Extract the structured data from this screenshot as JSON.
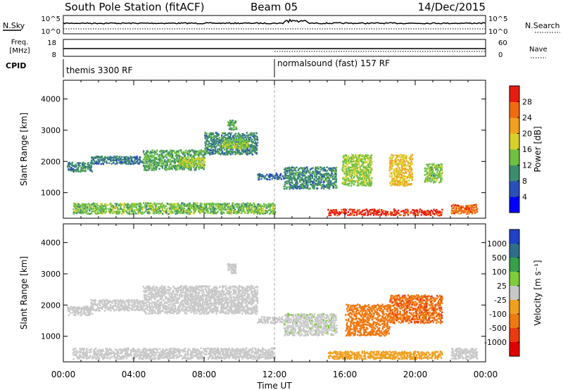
{
  "header": {
    "station": "South Pole Station (fitACF)",
    "beam": "Beam 05",
    "date": "14/Dec/2015"
  },
  "summary": {
    "nsky_label": "N.Sky",
    "nsearch_label": "N.Search",
    "count_ticks": [
      "10^5",
      "10^0"
    ],
    "freq_label_1": "Freq.",
    "freq_label_2": "[MHz]",
    "freq_ticks": [
      "18",
      "8"
    ],
    "nave_label": "Nave",
    "nave_ticks": [
      "60",
      "0"
    ],
    "cpid_label": "CPID",
    "cpid_segments": [
      {
        "name": "themis 3300 RF",
        "start_hour": 0
      },
      {
        "name": "normalsound (fast) 157 RF",
        "start_hour": 12
      }
    ]
  },
  "axes": {
    "x_ticks": [
      "00:00",
      "04:00",
      "08:00",
      "12:00",
      "16:00",
      "20:00",
      "00:00"
    ],
    "x_label": "Time UT",
    "x_range_hours": [
      0,
      24
    ],
    "y_ticks": [
      "1000",
      "2000",
      "3000",
      "4000"
    ],
    "y_label": "Slant Range [km]",
    "y_range_km": [
      180,
      4600
    ]
  },
  "colors": {
    "power_scale": [
      "#0000ff",
      "#2b4fb8",
      "#3e8c6e",
      "#6fc043",
      "#d8d02a",
      "#f2a020",
      "#f26a10",
      "#e61c10"
    ],
    "velocity_scale": [
      "#2042c8",
      "#2e6e8c",
      "#36a04a",
      "#7ccc3c",
      "#c8c8c8",
      "#f0a020",
      "#f07810",
      "#e83c10",
      "#e00000"
    ]
  },
  "chart_data": [
    {
      "type": "heatmap",
      "panel": "power",
      "colorbar_label": "Power [dB]",
      "colorbar_ticks": [
        "4",
        "8",
        "12",
        "16",
        "20",
        "24",
        "28"
      ],
      "colorbar_range": [
        0,
        32
      ],
      "grid": false,
      "echo_regions": [
        {
          "t": [
            0.2,
            1.6
          ],
          "r": [
            1650,
            1950
          ],
          "level": 10
        },
        {
          "t": [
            1.5,
            4.5
          ],
          "r": [
            1900,
            2150
          ],
          "level": 9
        },
        {
          "t": [
            4.5,
            8.0
          ],
          "r": [
            1700,
            2350
          ],
          "level": 12
        },
        {
          "t": [
            6.5,
            8.0
          ],
          "r": [
            1800,
            2100
          ],
          "level": 17
        },
        {
          "t": [
            8.0,
            11.0
          ],
          "r": [
            2200,
            2900
          ],
          "level": 10
        },
        {
          "t": [
            9.0,
            10.5
          ],
          "r": [
            2400,
            2700
          ],
          "level": 15
        },
        {
          "t": [
            9.3,
            9.8
          ],
          "r": [
            3000,
            3300
          ],
          "level": 12
        },
        {
          "t": [
            11.0,
            12.5
          ],
          "r": [
            1400,
            1600
          ],
          "level": 8
        },
        {
          "t": [
            12.5,
            15.5
          ],
          "r": [
            1100,
            1800
          ],
          "level": 10
        },
        {
          "t": [
            15.8,
            17.5
          ],
          "r": [
            1200,
            2200
          ],
          "level": 15
        },
        {
          "t": [
            18.5,
            19.8
          ],
          "r": [
            1200,
            2200
          ],
          "level": 20
        },
        {
          "t": [
            20.5,
            21.5
          ],
          "r": [
            1300,
            1900
          ],
          "level": 14
        },
        {
          "t": [
            0.5,
            12.0
          ],
          "r": [
            300,
            650
          ],
          "level": 14
        },
        {
          "t": [
            15.0,
            21.5
          ],
          "r": [
            250,
            450
          ],
          "level": 30
        },
        {
          "t": [
            22.0,
            23.5
          ],
          "r": [
            300,
            600
          ],
          "level": 26
        }
      ]
    },
    {
      "type": "heatmap",
      "panel": "velocity",
      "colorbar_label": "Velocity [m s⁻¹]",
      "colorbar_ticks": [
        "1000",
        "500",
        "100",
        "25",
        "-25",
        "-100",
        "-500",
        "-1000"
      ],
      "colorbar_range": [
        -1500,
        1500
      ],
      "grid": false,
      "echo_regions": [
        {
          "t": [
            0.2,
            1.6
          ],
          "r": [
            1650,
            1950
          ],
          "level": 0
        },
        {
          "t": [
            1.5,
            4.5
          ],
          "r": [
            1800,
            2150
          ],
          "level": 0
        },
        {
          "t": [
            4.5,
            11.0
          ],
          "r": [
            1700,
            2600
          ],
          "level": 0
        },
        {
          "t": [
            9.3,
            9.8
          ],
          "r": [
            3000,
            3300
          ],
          "level": 80
        },
        {
          "t": [
            11.0,
            12.5
          ],
          "r": [
            1400,
            1600
          ],
          "level": 0
        },
        {
          "t": [
            12.5,
            15.5
          ],
          "r": [
            1000,
            1700
          ],
          "level": 120
        },
        {
          "t": [
            16.0,
            18.5
          ],
          "r": [
            1000,
            2000
          ],
          "level": -600
        },
        {
          "t": [
            18.5,
            21.5
          ],
          "r": [
            1400,
            2300
          ],
          "level": -800
        },
        {
          "t": [
            0.5,
            12.0
          ],
          "r": [
            250,
            600
          ],
          "level": 60
        },
        {
          "t": [
            15.0,
            21.5
          ],
          "r": [
            250,
            500
          ],
          "level": -300
        },
        {
          "t": [
            22.0,
            23.5
          ],
          "r": [
            250,
            600
          ],
          "level": 60
        }
      ]
    }
  ]
}
